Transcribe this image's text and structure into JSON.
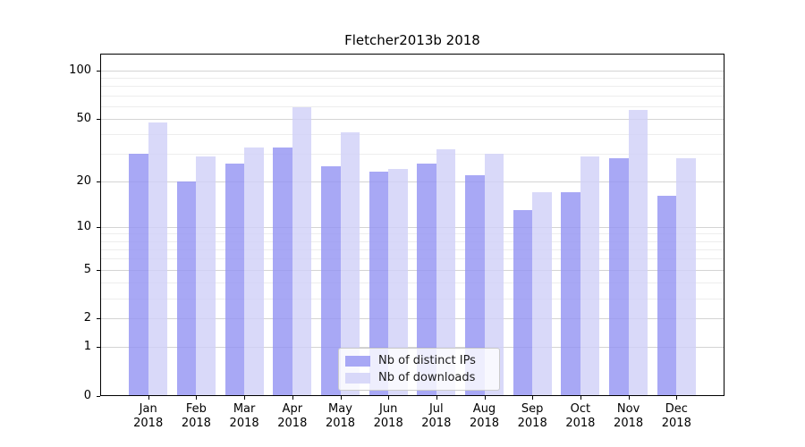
{
  "chart_data": {
    "type": "bar",
    "title": "Fletcher2013b 2018",
    "categories": [
      "Jan",
      "Feb",
      "Mar",
      "Apr",
      "May",
      "Jun",
      "Jul",
      "Aug",
      "Sep",
      "Oct",
      "Nov",
      "Dec"
    ],
    "x_year_label": "2018",
    "series": [
      {
        "name": "Nb of distinct IPs",
        "color": "#a8a8f5",
        "color_css": "rgba(146,146,242,0.8)",
        "values": [
          30,
          20,
          26,
          33,
          25,
          23,
          26,
          22,
          13,
          17,
          28,
          16
        ]
      },
      {
        "name": "Nb of downloads",
        "color": "#d9d9f9",
        "color_css": "rgba(208,208,248,0.8)",
        "values": [
          47,
          29,
          33,
          59,
          41,
          24,
          32,
          30,
          17,
          29,
          57,
          28
        ]
      }
    ],
    "yscale": "log1p",
    "ylim": [
      0,
      127
    ],
    "y_major_ticks": [
      100,
      50,
      20,
      10,
      5,
      2,
      1,
      0
    ],
    "y_minor_gridlines": [
      3,
      4,
      6,
      7,
      8,
      9,
      30,
      40,
      60,
      70,
      80,
      90
    ],
    "grid": true,
    "legend_position": "lower center"
  },
  "colors": {
    "major_grid": "#d4d4d4",
    "minor_grid": "#ededed",
    "spine": "#000000",
    "text": "#000000",
    "legend_border": "#cccccc"
  }
}
